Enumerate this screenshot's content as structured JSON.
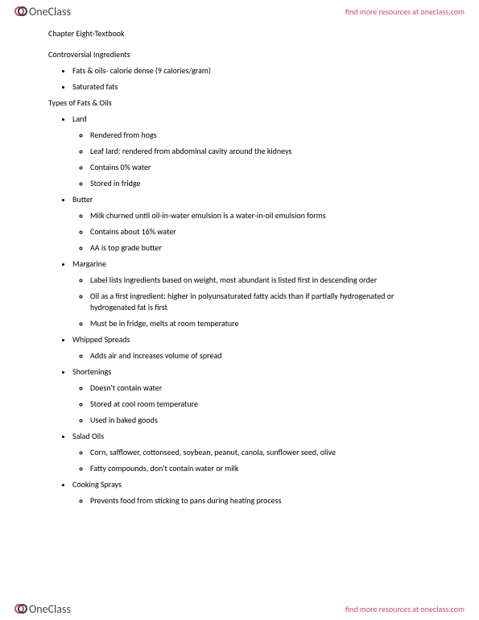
{
  "brand": {
    "name": "OneClass",
    "tagline": "find more resources at oneclass.com",
    "logo_color": "#c94f5f",
    "logo_accent": "#3a3a3a"
  },
  "doc": {
    "chapter_title": "Chapter Eight-Textbook",
    "section1_heading": "Controversial Ingredients",
    "section1_items": [
      "Fats & oils- calorie dense (9 calories/gram)",
      "Saturated fats"
    ],
    "section2_heading": "Types of Fats & Oils",
    "types": [
      {
        "name": "Lard",
        "points": [
          "Rendered from hogs",
          "Leaf lard: rendered from abdominal cavity around the kidneys",
          "Contains 0% water",
          "Stored in fridge"
        ]
      },
      {
        "name": "Butter",
        "points": [
          "Milk churned until oil-in-water emulsion is a water-in-oil emulsion forms",
          "Contains about 16% water",
          "AA is top grade butter"
        ]
      },
      {
        "name": "Margarine",
        "points": [
          "Label lists ingredients based on weight, most abundant is listed first in descending order",
          "Oil as a first ingredient: higher in polyunsaturated fatty acids than if partially hydrogenated or hydrogenated fat is first",
          "Must be in fridge, melts at room temperature"
        ]
      },
      {
        "name": "Whipped Spreads",
        "points": [
          "Adds air and increases volume of spread"
        ]
      },
      {
        "name": "Shortenings",
        "points": [
          "Doesn't contain water",
          "Stored at cool room temperature",
          "Used in baked goods"
        ]
      },
      {
        "name": "Salad Oils",
        "points": [
          "Corn, safflower, cottonseed, soybean, peanut, canola, sunflower seed, olive",
          "Fatty compounds, don't contain water or milk"
        ]
      },
      {
        "name": "Cooking Sprays",
        "points": [
          "Prevents food from sticking to pans during heating process"
        ]
      }
    ]
  }
}
